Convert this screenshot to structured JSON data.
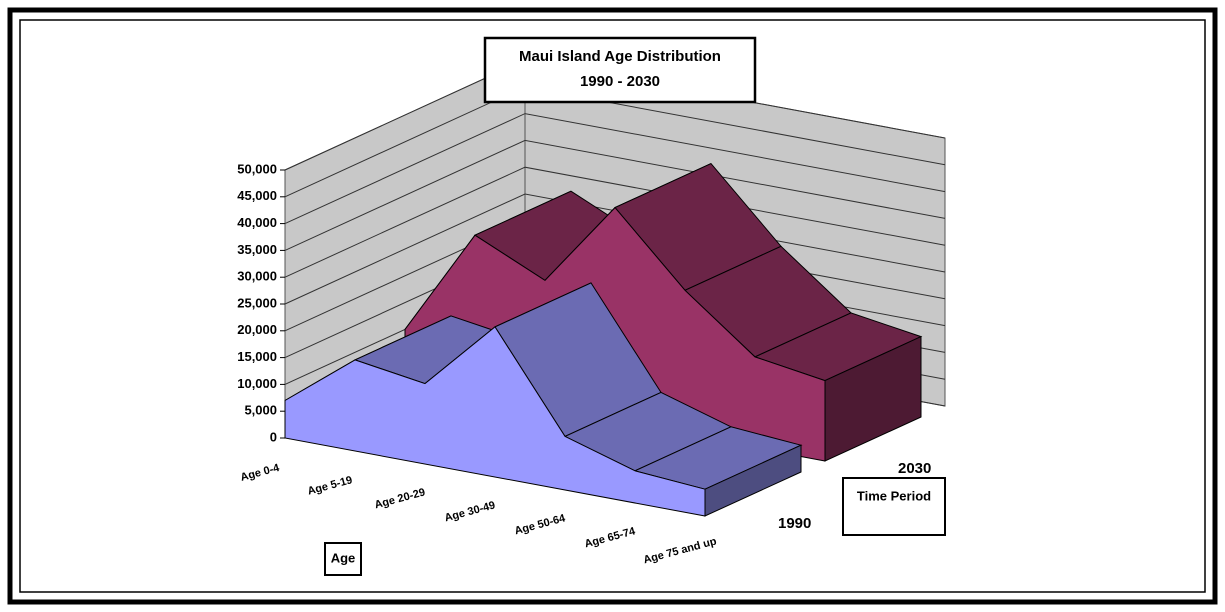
{
  "chart_data": {
    "type": "area3d",
    "title": "Maui Island Age Distribution",
    "subtitle": "1990 - 2030",
    "x_label": "Age",
    "depth_label": "Time Period",
    "categories": [
      "Age 0-4",
      "Age 5-19",
      "Age 20-29",
      "Age 30-49",
      "Age 50-64",
      "Age 65-74",
      "Age 75 and up"
    ],
    "series": [
      {
        "name": "1990",
        "color": "#9999ff",
        "values": [
          7000,
          17000,
          15000,
          28000,
          10000,
          6000,
          5000
        ]
      },
      {
        "name": "2030",
        "color": "#993366",
        "values": [
          10000,
          30000,
          24000,
          40000,
          27000,
          17000,
          15000
        ]
      }
    ],
    "ylim": [
      0,
      50000
    ],
    "yticks": [
      0,
      {
        "value": 5000,
        "label": "5,000"
      },
      {
        "value": 10000,
        "label": "10,000"
      },
      {
        "value": 15000,
        "label": "15,000"
      },
      {
        "value": 20000,
        "label": "20,000"
      },
      {
        "value": 25000,
        "label": "25,000"
      },
      {
        "value": 30000,
        "label": "30,000"
      },
      {
        "value": 35000,
        "label": "35,000"
      },
      {
        "value": 40000,
        "label": "40,000"
      },
      {
        "value": 45000,
        "label": "45,000"
      },
      {
        "value": 50000,
        "label": "50,000"
      }
    ],
    "grid": true
  }
}
